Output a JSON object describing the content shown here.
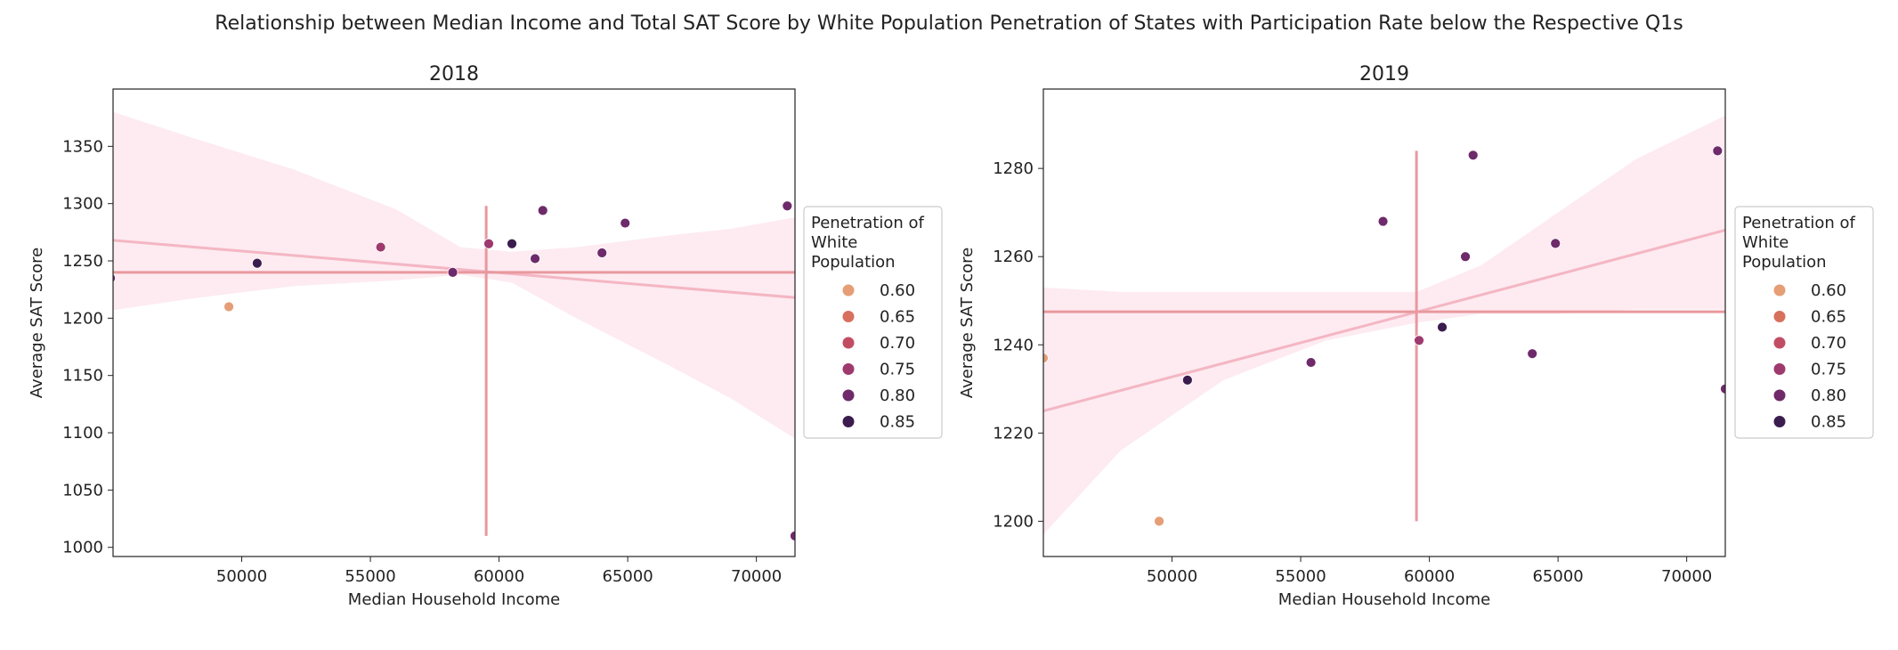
{
  "figure": {
    "suptitle": "Relationship between Median Income and Total SAT Score by White Population Penetration of States with Participation Rate below the Respective Q1s"
  },
  "legend": {
    "title_lines": [
      "Penetration of",
      " White",
      " Population"
    ],
    "items": [
      {
        "label": "0.60",
        "color": "#e59e76"
      },
      {
        "label": "0.65",
        "color": "#d8705e"
      },
      {
        "label": "0.70",
        "color": "#c24d62"
      },
      {
        "label": "0.75",
        "color": "#9e3a6e"
      },
      {
        "label": "0.80",
        "color": "#6e2a6a"
      },
      {
        "label": "0.85",
        "color": "#3b1c4f"
      }
    ]
  },
  "colors": {
    "regression_line": "#f4b6c3",
    "confidence_band": "#fde8ee",
    "mean_lines": "#e8999e"
  },
  "chart_data": [
    {
      "type": "scatter",
      "title": "2018",
      "xlabel": "Median Household Income",
      "ylabel": "Average SAT Score",
      "xlim": [
        45000,
        71500
      ],
      "ylim": [
        992,
        1400
      ],
      "xticks": [
        50000,
        55000,
        60000,
        65000,
        70000
      ],
      "yticks": [
        1000,
        1050,
        1100,
        1150,
        1200,
        1250,
        1300,
        1350
      ],
      "grid": false,
      "legend_position": "outside-right",
      "points": [
        {
          "x": 44900,
          "y": 1235,
          "hue": 0.8
        },
        {
          "x": 49500,
          "y": 1210,
          "hue": 0.6
        },
        {
          "x": 50600,
          "y": 1248,
          "hue": 0.85
        },
        {
          "x": 55400,
          "y": 1262,
          "hue": 0.75
        },
        {
          "x": 58200,
          "y": 1240,
          "hue": 0.8
        },
        {
          "x": 59600,
          "y": 1265,
          "hue": 0.75
        },
        {
          "x": 60500,
          "y": 1265,
          "hue": 0.85
        },
        {
          "x": 61400,
          "y": 1252,
          "hue": 0.8
        },
        {
          "x": 61700,
          "y": 1294,
          "hue": 0.8
        },
        {
          "x": 64000,
          "y": 1257,
          "hue": 0.8
        },
        {
          "x": 64900,
          "y": 1283,
          "hue": 0.8
        },
        {
          "x": 71200,
          "y": 1298,
          "hue": 0.8
        },
        {
          "x": 71500,
          "y": 1010,
          "hue": 0.8
        }
      ],
      "regression": {
        "x": [
          45000,
          71500
        ],
        "y": [
          1268,
          1218
        ]
      },
      "confidence_band": [
        {
          "x": 45000,
          "lo": 1207,
          "hi": 1380
        },
        {
          "x": 48000,
          "lo": 1217,
          "hi": 1358
        },
        {
          "x": 52000,
          "lo": 1228,
          "hi": 1330
        },
        {
          "x": 56000,
          "lo": 1233,
          "hi": 1295
        },
        {
          "x": 58500,
          "lo": 1238,
          "hi": 1262
        },
        {
          "x": 60500,
          "lo": 1231,
          "hi": 1258
        },
        {
          "x": 63000,
          "lo": 1200,
          "hi": 1262
        },
        {
          "x": 66500,
          "lo": 1160,
          "hi": 1272
        },
        {
          "x": 69000,
          "lo": 1130,
          "hi": 1278
        },
        {
          "x": 71500,
          "lo": 1095,
          "hi": 1288
        }
      ],
      "mean_lines": {
        "h_y": 1240,
        "v_x": 59500,
        "v_y_range": [
          1010,
          1298
        ]
      }
    },
    {
      "type": "scatter",
      "title": "2019",
      "xlabel": "Median Household Income",
      "ylabel": "Average SAT Score",
      "xlim": [
        45000,
        71500
      ],
      "ylim": [
        1192,
        1298
      ],
      "xticks": [
        50000,
        55000,
        60000,
        65000,
        70000
      ],
      "yticks": [
        1200,
        1220,
        1240,
        1260,
        1280
      ],
      "grid": false,
      "legend_position": "outside-right",
      "points": [
        {
          "x": 45000,
          "y": 1237,
          "hue": 0.6
        },
        {
          "x": 49500,
          "y": 1200,
          "hue": 0.6
        },
        {
          "x": 50600,
          "y": 1232,
          "hue": 0.85
        },
        {
          "x": 55400,
          "y": 1236,
          "hue": 0.8
        },
        {
          "x": 58200,
          "y": 1268,
          "hue": 0.8
        },
        {
          "x": 59600,
          "y": 1241,
          "hue": 0.75
        },
        {
          "x": 60500,
          "y": 1244,
          "hue": 0.85
        },
        {
          "x": 61400,
          "y": 1260,
          "hue": 0.8
        },
        {
          "x": 61700,
          "y": 1283,
          "hue": 0.8
        },
        {
          "x": 64000,
          "y": 1238,
          "hue": 0.8
        },
        {
          "x": 64900,
          "y": 1263,
          "hue": 0.8
        },
        {
          "x": 71200,
          "y": 1284,
          "hue": 0.8
        },
        {
          "x": 71500,
          "y": 1230,
          "hue": 0.8
        }
      ],
      "regression": {
        "x": [
          45000,
          71500
        ],
        "y": [
          1225,
          1266
        ]
      },
      "confidence_band": [
        {
          "x": 45000,
          "lo": 1197,
          "hi": 1253
        },
        {
          "x": 48000,
          "lo": 1216,
          "hi": 1252
        },
        {
          "x": 52000,
          "lo": 1232,
          "hi": 1252
        },
        {
          "x": 56000,
          "lo": 1241,
          "hi": 1252
        },
        {
          "x": 59500,
          "lo": 1245,
          "hi": 1252
        },
        {
          "x": 62000,
          "lo": 1247,
          "hi": 1258
        },
        {
          "x": 65000,
          "lo": 1247,
          "hi": 1270
        },
        {
          "x": 68000,
          "lo": 1248,
          "hi": 1282
        },
        {
          "x": 71500,
          "lo": 1248,
          "hi": 1292
        }
      ],
      "mean_lines": {
        "h_y": 1247.5,
        "v_x": 59500,
        "v_y_range": [
          1200,
          1284
        ]
      }
    }
  ]
}
